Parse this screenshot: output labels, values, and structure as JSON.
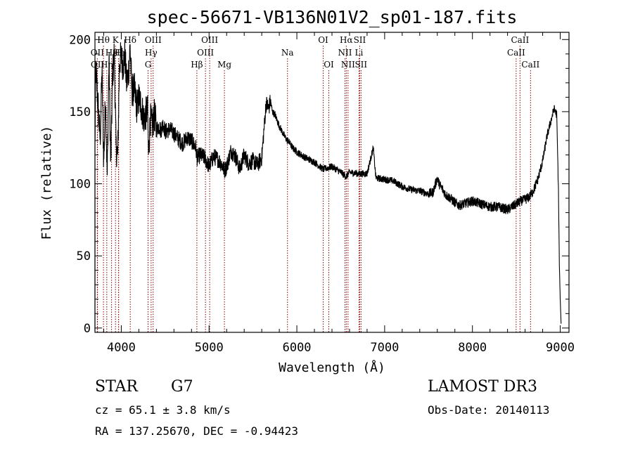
{
  "colors": {
    "line_color": "#8b0000",
    "spectrum": "#000000"
  },
  "chart_data": {
    "type": "line",
    "title": "spec-56671-VB136N01V2_sp01-187.fits",
    "xlabel": "Wavelength (Å)",
    "ylabel": "Flux (relative)",
    "xlim": [
      3700,
      9100
    ],
    "ylim": [
      -3,
      205
    ],
    "xticks": [
      "4000",
      "5000",
      "6000",
      "7000",
      "8000",
      "9000"
    ],
    "yticks": [
      "0",
      "50",
      "100",
      "150",
      "200"
    ],
    "spectrum": {
      "x": [
        3700,
        3710,
        3725,
        3740,
        3760,
        3780,
        3800,
        3820,
        3840,
        3860,
        3880,
        3900,
        3920,
        3940,
        3960,
        3980,
        4000,
        4020,
        4040,
        4060,
        4080,
        4100,
        4120,
        4150,
        4180,
        4200,
        4230,
        4260,
        4290,
        4300,
        4310,
        4330,
        4350,
        4380,
        4400,
        4430,
        4450,
        4480,
        4500,
        4550,
        4600,
        4650,
        4700,
        4750,
        4800,
        4850,
        4861,
        4900,
        4950,
        5000,
        5050,
        5100,
        5150,
        5175,
        5200,
        5250,
        5300,
        5350,
        5400,
        5450,
        5500,
        5550,
        5600,
        5650,
        5680,
        5700,
        5720,
        5750,
        5800,
        5850,
        5890,
        5900,
        5950,
        6000,
        6100,
        6200,
        6300,
        6400,
        6500,
        6563,
        6600,
        6700,
        6800,
        6870,
        6900,
        7000,
        7100,
        7200,
        7300,
        7400,
        7500,
        7550,
        7600,
        7620,
        7650,
        7700,
        7750,
        7800,
        7850,
        7900,
        8000,
        8100,
        8200,
        8300,
        8400,
        8500,
        8550,
        8600,
        8650,
        8700,
        8750,
        8800,
        8850,
        8900,
        8930,
        8960,
        8980,
        8990,
        9000,
        9010
      ],
      "y": [
        125,
        180,
        165,
        150,
        130,
        178,
        115,
        160,
        105,
        188,
        110,
        175,
        190,
        125,
        120,
        185,
        188,
        182,
        190,
        170,
        175,
        195,
        165,
        165,
        152,
        160,
        153,
        145,
        150,
        150,
        120,
        145,
        140,
        148,
        138,
        140,
        137,
        142,
        136,
        138,
        135,
        131,
        128,
        132,
        130,
        125,
        118,
        120,
        118,
        112,
        119,
        117,
        113,
        109,
        112,
        123,
        119,
        110,
        120,
        114,
        116,
        113,
        118,
        156,
        152,
        158,
        150,
        148,
        140,
        134,
        130,
        130,
        125,
        122,
        118,
        115,
        110,
        112,
        108,
        105,
        108,
        107,
        107,
        125,
        104,
        103,
        102,
        98,
        96,
        95,
        93,
        94,
        104,
        100,
        97,
        92,
        90,
        87,
        85,
        86,
        88,
        86,
        84,
        84,
        82,
        86,
        88,
        89,
        91,
        96,
        104,
        116,
        133,
        145,
        152,
        148,
        95,
        45,
        20,
        3
      ]
    },
    "lines": [
      {
        "name": "Hθ",
        "x": 3797,
        "row": 0
      },
      {
        "name": "K",
        "x": 3934,
        "row": 0
      },
      {
        "name": "Hδ",
        "x": 4102,
        "row": 0
      },
      {
        "name": "OIII",
        "x": 4363,
        "row": 0
      },
      {
        "name": "OIII",
        "x": 5007,
        "row": 0
      },
      {
        "name": "OI",
        "x": 6300,
        "row": 0
      },
      {
        "name": "Hα",
        "x": 6563,
        "row": 0
      },
      {
        "name": "SII",
        "x": 6716,
        "row": 0
      },
      {
        "name": "CaII",
        "x": 8542,
        "row": 0
      },
      {
        "name": "OII",
        "x": 3727,
        "row": 1
      },
      {
        "name": "He",
        "x": 3889,
        "row": 1
      },
      {
        "name": "H",
        "x": 3968,
        "row": 1
      },
      {
        "name": "Hε",
        "x": 3970,
        "row": 1
      },
      {
        "name": "Hγ",
        "x": 4340,
        "row": 1
      },
      {
        "name": "OIII",
        "x": 4959,
        "row": 1
      },
      {
        "name": "Na",
        "x": 5893,
        "row": 1
      },
      {
        "name": "NII",
        "x": 6548,
        "row": 1
      },
      {
        "name": "Li",
        "x": 6708,
        "row": 1
      },
      {
        "name": "CaII",
        "x": 8498,
        "row": 1
      },
      {
        "name": "OII",
        "x": 3729,
        "row": 2
      },
      {
        "name": "Hη",
        "x": 3835,
        "row": 2
      },
      {
        "name": "G",
        "x": 4305,
        "row": 2
      },
      {
        "name": "Hβ",
        "x": 4861,
        "row": 2
      },
      {
        "name": "Mg",
        "x": 5175,
        "row": 2
      },
      {
        "name": "OI",
        "x": 6364,
        "row": 2
      },
      {
        "name": "NII",
        "x": 6583,
        "row": 2
      },
      {
        "name": "SII",
        "x": 6731,
        "row": 2
      },
      {
        "name": "CaII",
        "x": 8662,
        "row": 2
      }
    ]
  },
  "info": {
    "class": "STAR",
    "subclass": "G7",
    "survey": "LAMOST DR3",
    "cz": "cz = 65.1 ± 3.8 km/s",
    "obs_date": "Obs-Date: 20140113",
    "coords": "RA = 137.25670, DEC =  -0.94423"
  }
}
